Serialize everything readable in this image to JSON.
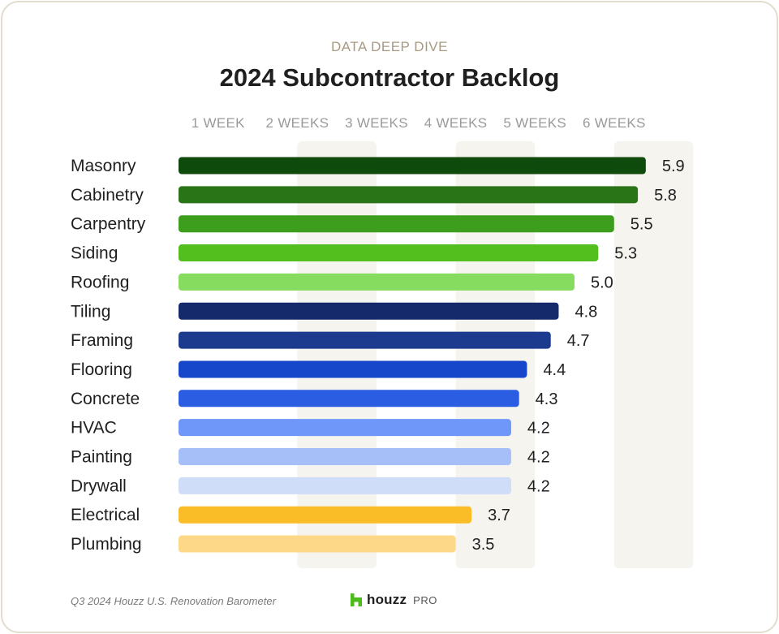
{
  "header": {
    "eyebrow": "DATA DEEP DIVE",
    "title": "2024 Subcontractor Backlog"
  },
  "footer": {
    "source": "Q3 2024 Houzz U.S. Renovation Barometer",
    "brand_name": "houzz",
    "brand_sub": "PRO"
  },
  "colors": {
    "brand_green": "#4bbc1c",
    "band": "#f6f4ef"
  },
  "chart_data": {
    "type": "bar",
    "orientation": "horizontal",
    "title": "2024 Subcontractor Backlog",
    "x_tick_labels": [
      "1 WEEK",
      "2 WEEKS",
      "3 WEEKS",
      "4 WEEKS",
      "5 WEEKS",
      "6 WEEKS"
    ],
    "x_ticks": [
      1,
      2,
      3,
      4,
      5,
      6
    ],
    "xlim": [
      0,
      6
    ],
    "grid": "alternating vertical bands",
    "categories": [
      "Masonry",
      "Cabinetry",
      "Carpentry",
      "Siding",
      "Roofing",
      "Tiling",
      "Framing",
      "Flooring",
      "Concrete",
      "HVAC",
      "Painting",
      "Drywall",
      "Electrical",
      "Plumbing"
    ],
    "values": [
      5.9,
      5.8,
      5.5,
      5.3,
      5.0,
      4.8,
      4.7,
      4.4,
      4.3,
      4.2,
      4.2,
      4.2,
      3.7,
      3.5
    ],
    "value_labels": [
      "5.9",
      "5.8",
      "5.5",
      "5.3",
      "5.0",
      "4.8",
      "4.7",
      "4.4",
      "4.3",
      "4.2",
      "4.2",
      "4.2",
      "3.7",
      "3.5"
    ],
    "bar_colors": [
      "#0f4a0d",
      "#2a7418",
      "#3c9e1c",
      "#52bf1f",
      "#86dc5e",
      "#142a6a",
      "#1c3a8e",
      "#1646c9",
      "#2b5de3",
      "#6f96f9",
      "#a6bff9",
      "#d0ddf9",
      "#fbbd27",
      "#fcd888"
    ]
  }
}
